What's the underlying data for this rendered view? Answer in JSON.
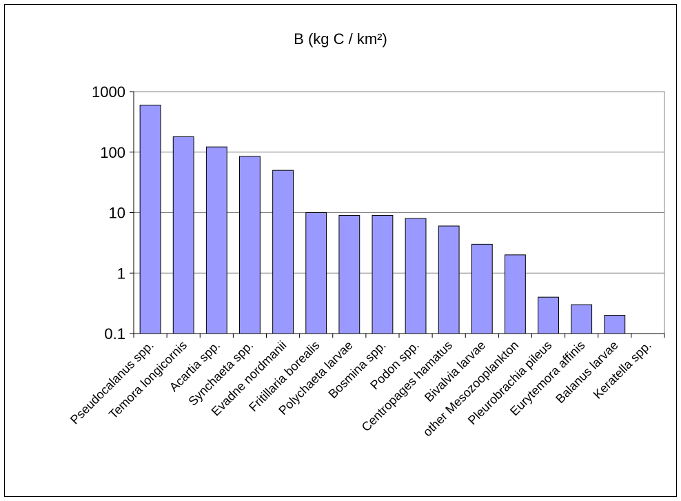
{
  "chart_data": {
    "type": "bar",
    "title": "B (kg C / km²)",
    "xlabel": "",
    "ylabel": "",
    "y_scale": "log",
    "ylim": [
      0.1,
      1000
    ],
    "y_ticks": [
      "0.1",
      "1",
      "10",
      "100",
      "1000"
    ],
    "grid": "horizontal",
    "legend": "none",
    "bar_color": "#9999ff",
    "bar_edge_color": "#000000",
    "categories": [
      "Pseudocalanus spp.",
      "Temora longicornis",
      "Acartia spp.",
      "Synchaeta spp.",
      "Evadne nordmanii",
      "Fritillaria borealis",
      "Polychaeta larvae",
      "Bosmina spp.",
      "Podon spp.",
      "Centropages hamatus",
      "Bivalvia larvae",
      "other Mesozooplankton",
      "Pleurobrachia pileus",
      "Eurytemora affinis",
      "Balanus larvae",
      "Keratella spp."
    ],
    "values": [
      600,
      180,
      122,
      85,
      50,
      10,
      9,
      9,
      8,
      6,
      3,
      2,
      0.4,
      0.3,
      0.2,
      0.1
    ]
  }
}
